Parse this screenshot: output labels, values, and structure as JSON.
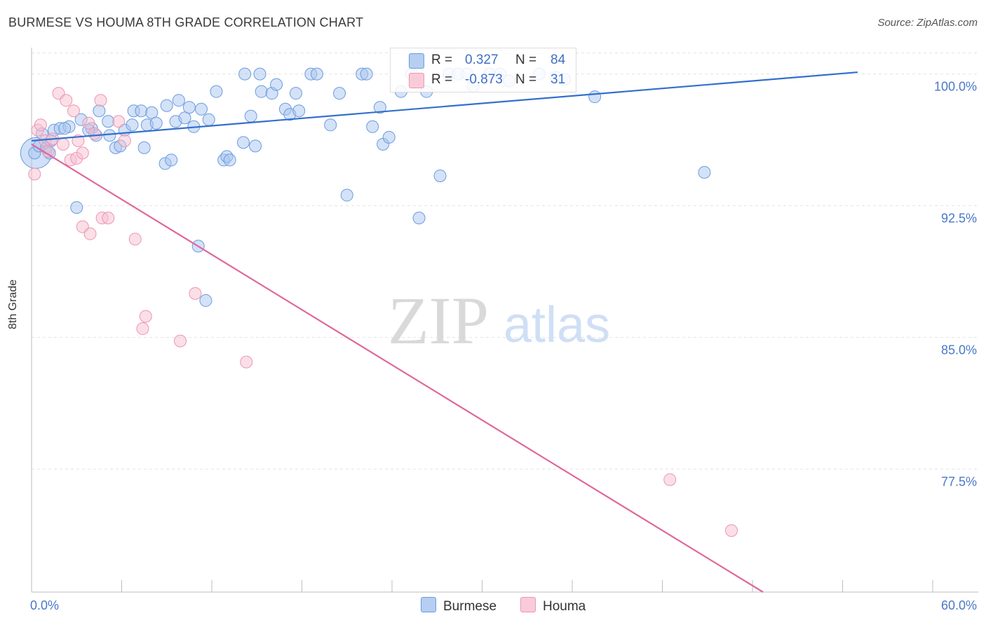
{
  "title": "BURMESE VS HOUMA 8TH GRADE CORRELATION CHART",
  "source": "Source: ZipAtlas.com",
  "watermark": {
    "zip": "ZIP",
    "atlas": "atlas"
  },
  "colors": {
    "burmese_fill": "#a9c6ef",
    "burmese_stroke": "#6b9be0",
    "burmese_line": "#3370cc",
    "houma_fill": "#f6bfd0",
    "houma_stroke": "#ee94b3",
    "houma_line": "#e0679a",
    "tick_text": "#4a78c8",
    "grid": "#e3e3e3"
  },
  "legend": {
    "rows": [
      {
        "r_label": "R =",
        "r_value": "0.327",
        "n_label": "N =",
        "n_value": "84"
      },
      {
        "r_label": "R =",
        "r_value": "-0.873",
        "n_label": "N =",
        "n_value": "31"
      }
    ]
  },
  "bottom_legend": [
    "Burmese",
    "Houma"
  ],
  "chart_data": {
    "type": "scatter",
    "title": "BURMESE VS HOUMA 8TH GRADE CORRELATION CHART",
    "xlabel": "",
    "ylabel": "8th Grade",
    "xlim": [
      0,
      60
    ],
    "ylim": [
      70.5,
      101.5
    ],
    "x_tick_labels": [
      "0.0%",
      "60.0%"
    ],
    "y_ticks": [
      100.0,
      92.5,
      85.0,
      77.5
    ],
    "y_tick_labels": [
      "100.0%",
      "92.5%",
      "85.0%",
      "77.5%"
    ],
    "grid": "horizontal dashed",
    "legend_position": "top-center",
    "series": [
      {
        "name": "Burmese",
        "r": 0.327,
        "n": 84,
        "trend": {
          "x": [
            0,
            55
          ],
          "y": [
            96.2,
            100.1
          ]
        },
        "points": [
          [
            0.2,
            95.5
          ],
          [
            0.5,
            95.9
          ],
          [
            0.7,
            96.6
          ],
          [
            1.0,
            95.8
          ],
          [
            1.3,
            96.2
          ],
          [
            1.5,
            96.8
          ],
          [
            1.9,
            96.9
          ],
          [
            2.5,
            97.0
          ],
          [
            3.3,
            97.4
          ],
          [
            4.0,
            96.9
          ],
          [
            4.5,
            97.9
          ],
          [
            4.3,
            96.5
          ],
          [
            3.8,
            96.8
          ],
          [
            5.1,
            97.3
          ],
          [
            5.2,
            96.5
          ],
          [
            5.6,
            95.8
          ],
          [
            5.9,
            95.9
          ],
          [
            6.2,
            96.8
          ],
          [
            6.7,
            97.1
          ],
          [
            6.8,
            97.9
          ],
          [
            7.3,
            97.9
          ],
          [
            7.5,
            95.8
          ],
          [
            7.7,
            97.1
          ],
          [
            8.0,
            97.8
          ],
          [
            8.3,
            97.2
          ],
          [
            8.9,
            94.9
          ],
          [
            9.0,
            98.2
          ],
          [
            9.3,
            95.1
          ],
          [
            9.6,
            97.3
          ],
          [
            9.8,
            98.5
          ],
          [
            10.2,
            97.5
          ],
          [
            10.5,
            98.1
          ],
          [
            10.8,
            97.0
          ],
          [
            11.3,
            98.0
          ],
          [
            11.8,
            97.4
          ],
          [
            12.3,
            99.0
          ],
          [
            12.8,
            95.1
          ],
          [
            13.0,
            95.3
          ],
          [
            13.2,
            95.1
          ],
          [
            14.1,
            96.1
          ],
          [
            14.6,
            97.6
          ],
          [
            14.9,
            95.9
          ],
          [
            14.2,
            100.0
          ],
          [
            15.3,
            99.0
          ],
          [
            15.2,
            100.0
          ],
          [
            16.0,
            98.9
          ],
          [
            16.3,
            99.4
          ],
          [
            16.9,
            98.0
          ],
          [
            17.2,
            97.7
          ],
          [
            17.6,
            98.9
          ],
          [
            17.8,
            97.9
          ],
          [
            18.6,
            100.0
          ],
          [
            19.0,
            100.0
          ],
          [
            19.9,
            97.1
          ],
          [
            20.5,
            98.9
          ],
          [
            21.0,
            93.1
          ],
          [
            22.0,
            100.0
          ],
          [
            22.3,
            100.0
          ],
          [
            22.7,
            97.0
          ],
          [
            23.2,
            98.1
          ],
          [
            23.4,
            96.0
          ],
          [
            23.8,
            96.4
          ],
          [
            24.6,
            99.0
          ],
          [
            25.3,
            100.0
          ],
          [
            25.8,
            91.8
          ],
          [
            26.3,
            99.0
          ],
          [
            27.2,
            94.2
          ],
          [
            27.8,
            100.0
          ],
          [
            28.4,
            100.0
          ],
          [
            29.0,
            100.0
          ],
          [
            29.4,
            99.3
          ],
          [
            30.5,
            100.0
          ],
          [
            31.2,
            100.0
          ],
          [
            31.8,
            99.6
          ],
          [
            33.8,
            100.0
          ],
          [
            34.9,
            99.8
          ],
          [
            35.5,
            99.7
          ],
          [
            37.5,
            98.7
          ],
          [
            44.8,
            94.4
          ],
          [
            3.0,
            92.4
          ],
          [
            11.1,
            90.2
          ],
          [
            11.6,
            87.1
          ],
          [
            1.2,
            95.5
          ],
          [
            2.2,
            96.9
          ]
        ],
        "big_point": [
          0.3,
          95.5
        ]
      },
      {
        "name": "Houma",
        "r": -0.873,
        "n": 31,
        "trend": {
          "x": [
            0,
            48.7
          ],
          "y": [
            96.0,
            70.5
          ]
        },
        "points": [
          [
            0.2,
            94.3
          ],
          [
            0.4,
            96.8
          ],
          [
            0.6,
            97.1
          ],
          [
            0.9,
            96.2
          ],
          [
            1.1,
            95.6
          ],
          [
            1.4,
            96.3
          ],
          [
            1.8,
            98.9
          ],
          [
            2.1,
            96.0
          ],
          [
            2.3,
            98.5
          ],
          [
            2.6,
            95.1
          ],
          [
            2.8,
            97.9
          ],
          [
            3.0,
            95.2
          ],
          [
            3.1,
            96.2
          ],
          [
            3.4,
            95.5
          ],
          [
            3.8,
            97.2
          ],
          [
            4.2,
            96.6
          ],
          [
            4.6,
            98.5
          ],
          [
            3.4,
            91.3
          ],
          [
            3.9,
            90.9
          ],
          [
            4.7,
            91.8
          ],
          [
            5.1,
            91.8
          ],
          [
            5.8,
            97.3
          ],
          [
            6.2,
            96.2
          ],
          [
            6.9,
            90.6
          ],
          [
            7.4,
            85.5
          ],
          [
            7.6,
            86.2
          ],
          [
            9.9,
            84.8
          ],
          [
            10.9,
            87.5
          ],
          [
            14.3,
            83.6
          ],
          [
            42.5,
            76.9
          ],
          [
            46.6,
            74.0
          ]
        ]
      }
    ]
  }
}
